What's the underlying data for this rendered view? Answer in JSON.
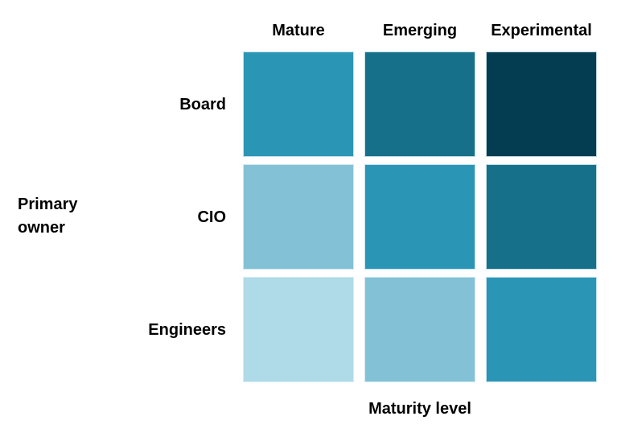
{
  "chart_data": {
    "type": "heatmap",
    "title": "",
    "x_categories": [
      "Mature",
      "Emerging",
      "Experimental"
    ],
    "y_categories": [
      "Board",
      "CIO",
      "Engineers"
    ],
    "xlabel": "Maturity level",
    "ylabel": "Primary owner",
    "legend_position": "none",
    "grid": false,
    "background_color": "#ffffff",
    "text_color": "#000000",
    "color_scale_low_to_high": [
      "#AFDAE8",
      "#83C1D6",
      "#2B95B6",
      "#17708A",
      "#043D52"
    ],
    "intensity_levels": [
      [
        3,
        4,
        5
      ],
      [
        2,
        3,
        4
      ],
      [
        1,
        2,
        3
      ]
    ],
    "cell_colors": [
      [
        "#2B95B6",
        "#17708A",
        "#043D52"
      ],
      [
        "#83C1D6",
        "#2B95B6",
        "#17708A"
      ],
      [
        "#AFDAE8",
        "#83C1D6",
        "#2B95B6"
      ]
    ]
  }
}
